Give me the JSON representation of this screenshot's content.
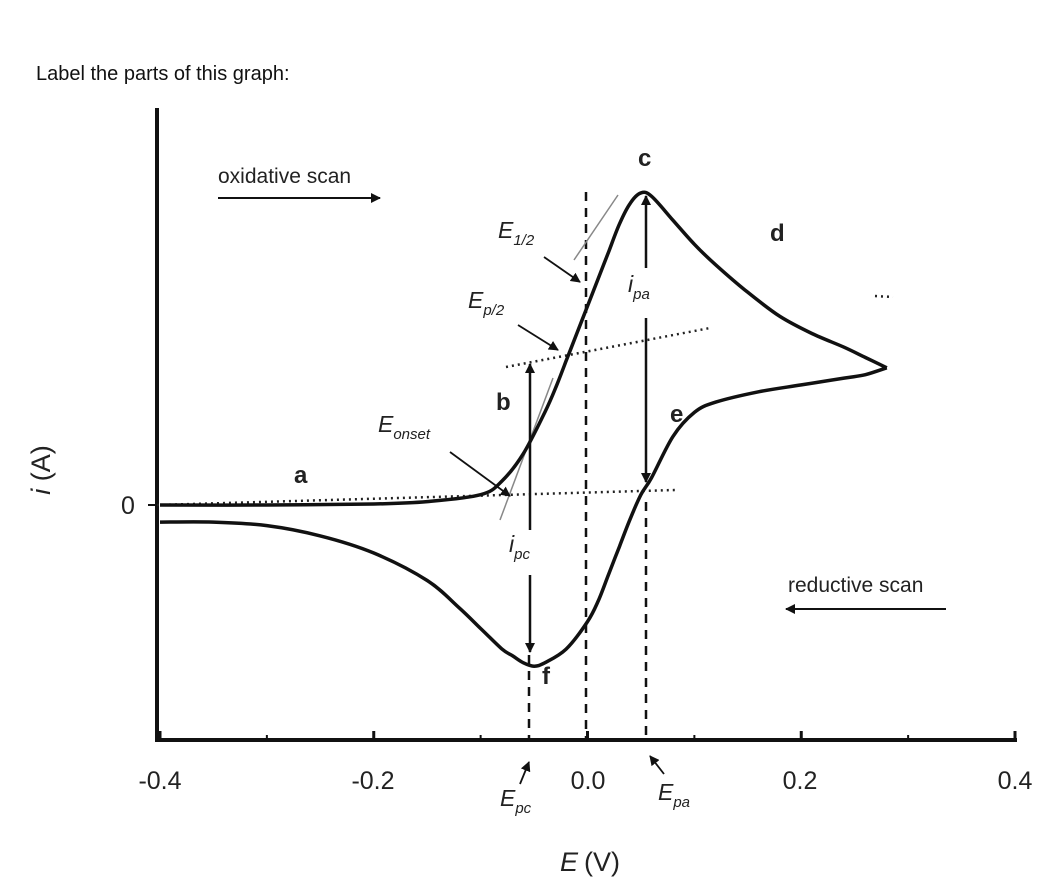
{
  "prompt": "Label the parts of this graph:",
  "chart_data": {
    "type": "line",
    "title": "",
    "xlabel_main": "E",
    "xlabel_unit": "(V)",
    "ylabel_main": "i",
    "ylabel_unit": "(A)",
    "xlim": [
      -0.4,
      0.4
    ],
    "x_ticks": [
      "-0.4",
      "-0.2",
      "0.0",
      "0.2",
      "0.4"
    ],
    "y_ticks": [
      "0"
    ],
    "series": [
      {
        "curve": "oxidative",
        "x": [
          -0.4,
          -0.3,
          -0.2,
          -0.15,
          -0.1,
          -0.08,
          -0.06,
          -0.04,
          -0.03,
          -0.02,
          -0.01,
          0.0,
          0.01,
          0.02,
          0.03,
          0.04,
          0.05,
          0.06,
          0.08,
          0.1,
          0.12,
          0.15,
          0.18,
          0.21,
          0.24,
          0.26,
          0.28
        ],
        "y": [
          0.0,
          0.0,
          0.003,
          0.01,
          0.03,
          0.07,
          0.15,
          0.27,
          0.34,
          0.42,
          0.5,
          0.58,
          0.66,
          0.74,
          0.82,
          0.88,
          0.91,
          0.9,
          0.83,
          0.76,
          0.7,
          0.62,
          0.55,
          0.5,
          0.46,
          0.43,
          0.4
        ]
      },
      {
        "curve": "reductive",
        "x": [
          0.28,
          0.26,
          0.24,
          0.2,
          0.16,
          0.12,
          0.1,
          0.08,
          0.06,
          0.05,
          0.04,
          0.03,
          0.02,
          0.01,
          0.0,
          -0.02,
          -0.04,
          -0.05,
          -0.06,
          -0.07,
          -0.08,
          -0.1,
          -0.12,
          -0.15,
          -0.2,
          -0.25,
          -0.3,
          -0.35,
          -0.4
        ],
        "y": [
          0.4,
          0.38,
          0.37,
          0.35,
          0.33,
          0.3,
          0.27,
          0.2,
          0.08,
          0.03,
          -0.04,
          -0.12,
          -0.2,
          -0.28,
          -0.34,
          -0.42,
          -0.46,
          -0.47,
          -0.46,
          -0.44,
          -0.42,
          -0.36,
          -0.3,
          -0.22,
          -0.14,
          -0.09,
          -0.06,
          -0.05,
          -0.05
        ]
      }
    ],
    "markers": {
      "E_pc": -0.06,
      "E_half": 0.0,
      "E_pa": 0.055
    },
    "labels": {
      "oxidative_scan": "oxidative scan",
      "reductive_scan": "reductive scan",
      "a": "a",
      "b": "b",
      "c": "c",
      "d": "d",
      "e": "e",
      "f": "f",
      "E": "E",
      "sub_half": "1/2",
      "sub_p2": "p/2",
      "sub_onset": "onset",
      "i": "i",
      "sub_pa": "pa",
      "sub_pc": "pc"
    }
  }
}
